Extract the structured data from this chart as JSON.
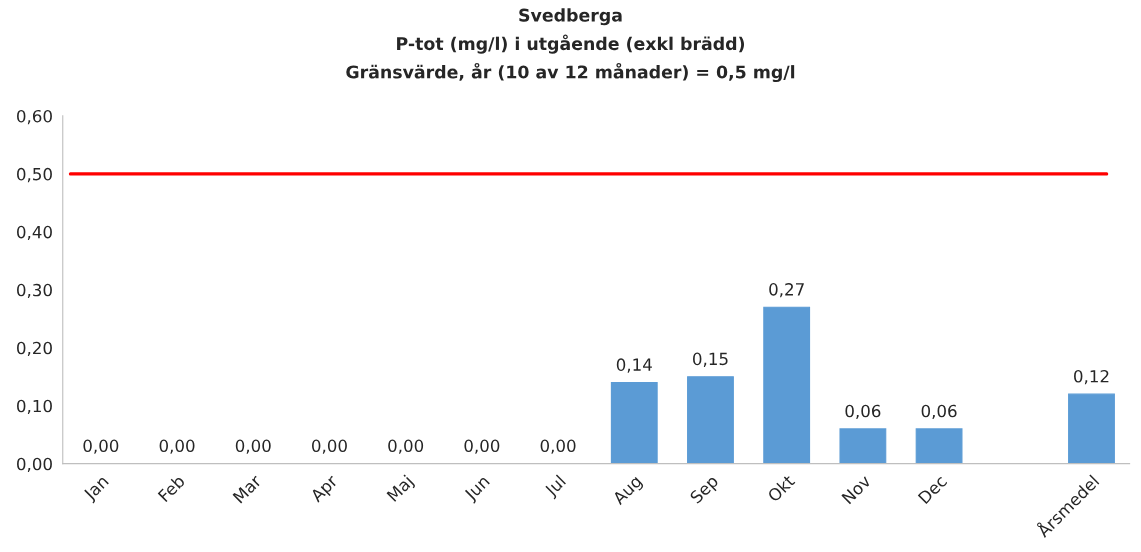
{
  "chart_data": {
    "type": "bar",
    "title": "Svedberga",
    "subtitle": "P-tot (mg/l) i utgående (exkl brädd)\nGränsvärde, år (10 av 12 månader) = 0,5 mg/l",
    "categories": [
      "Jan",
      "Feb",
      "Mar",
      "Apr",
      "Maj",
      "Jun",
      "Jul",
      "Aug",
      "Sep",
      "Okt",
      "Nov",
      "Dec",
      null,
      "Årsmedel"
    ],
    "values": [
      0,
      0,
      0,
      0,
      0,
      0,
      0,
      0.14,
      0.15,
      0.27,
      0.06,
      0.06,
      null,
      0.12
    ],
    "value_labels": [
      "0,00",
      "0,00",
      "0,00",
      "0,00",
      "0,00",
      "0,00",
      "0,00",
      "0,14",
      "0,15",
      "0,27",
      "0,06",
      "0,06",
      null,
      "0,12"
    ],
    "color": "#5b9bd5",
    "ylim": [
      0,
      0.6
    ],
    "yticks": [
      {
        "value": 0,
        "label": "0,00"
      },
      {
        "value": 0.1,
        "label": "0,10"
      },
      {
        "value": 0.2,
        "label": "0,20"
      },
      {
        "value": 0.3,
        "label": "0,30"
      },
      {
        "value": 0.4,
        "label": "0,40"
      },
      {
        "value": 0.5,
        "label": "0,50"
      },
      {
        "value": 0.6,
        "label": "0,60"
      }
    ],
    "ref_lines": [
      {
        "axis": "y",
        "value": 0.5,
        "color": "#ff0000",
        "line_style": "solid"
      }
    ],
    "grid": false
  }
}
